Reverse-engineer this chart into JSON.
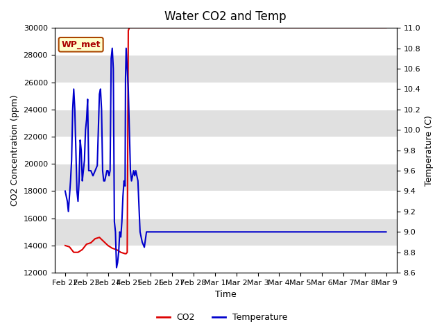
{
  "title": "Water CO2 and Temp",
  "xlabel": "Time",
  "ylabel_left": "CO2 Concentration (ppm)",
  "ylabel_right": "Temperature (C)",
  "ylim_left": [
    12000,
    30000
  ],
  "ylim_right": [
    8.6,
    11.0
  ],
  "co2_color": "#dd0000",
  "temp_color": "#0000cc",
  "annotation_text": "WP_met",
  "annotation_box_color": "#ffffcc",
  "annotation_box_edge": "#aa4400",
  "legend_labels": [
    "CO2",
    "Temperature"
  ],
  "bg_color": "#ffffff",
  "plot_bg_color": "#ffffff",
  "band_color": "#e0e0e0",
  "title_fontsize": 12,
  "axis_fontsize": 9,
  "tick_fontsize": 8,
  "x_tick_labels": [
    "Feb 22",
    "Feb 23",
    "Feb 24",
    "Feb 25",
    "Feb 26",
    "Feb 27",
    "Feb 28",
    "Mar 1",
    "Mar 2",
    "Mar 3",
    "Mar 4",
    "Mar 5",
    "Mar 6",
    "Mar 7",
    "Mar 8",
    "Mar 9"
  ],
  "left_yticks": [
    12000,
    14000,
    16000,
    18000,
    20000,
    22000,
    24000,
    26000,
    28000,
    30000
  ],
  "right_yticks": [
    8.6,
    8.8,
    9.0,
    9.2,
    9.4,
    9.6,
    9.8,
    10.0,
    10.2,
    10.4,
    10.6,
    10.8,
    11.0
  ],
  "co2_x": [
    0.0,
    0.2,
    0.4,
    0.6,
    0.8,
    1.0,
    1.2,
    1.4,
    1.6,
    1.8,
    2.0,
    2.2,
    2.4,
    2.6,
    2.8,
    2.85,
    2.9,
    2.95,
    3.0,
    3.1,
    4.0,
    5.0,
    6.0,
    7.0,
    8.0,
    9.0,
    10.0,
    11.0,
    12.0,
    13.0,
    14.0,
    15.0
  ],
  "co2_y": [
    14000,
    13900,
    13500,
    13500,
    13700,
    14100,
    14200,
    14500,
    14600,
    14300,
    14000,
    13800,
    13700,
    13500,
    13400,
    13400,
    13500,
    29800,
    30000,
    30000,
    30000,
    30000,
    30000,
    30000,
    30000,
    30000,
    30000,
    30000,
    30000,
    30000,
    30000,
    30000
  ],
  "temp_x": [
    0.0,
    0.05,
    0.1,
    0.15,
    0.2,
    0.25,
    0.3,
    0.35,
    0.4,
    0.45,
    0.5,
    0.55,
    0.6,
    0.65,
    0.7,
    0.75,
    0.8,
    0.85,
    0.9,
    0.95,
    1.0,
    1.05,
    1.1,
    1.15,
    1.2,
    1.3,
    1.4,
    1.5,
    1.6,
    1.65,
    1.7,
    1.75,
    1.8,
    1.85,
    1.9,
    1.95,
    2.0,
    2.05,
    2.1,
    2.15,
    2.2,
    2.25,
    2.3,
    2.35,
    2.4,
    2.45,
    2.5,
    2.55,
    2.6,
    2.65,
    2.7,
    2.75,
    2.8,
    2.82,
    2.85,
    2.9,
    2.95,
    3.0,
    3.05,
    3.1,
    3.15,
    3.2,
    3.25,
    3.3,
    3.4,
    3.5,
    3.6,
    3.7,
    3.8,
    3.9,
    4.0,
    4.2,
    4.5,
    5.0,
    6.0,
    7.0,
    8.0,
    9.0,
    10.0,
    11.0,
    12.0,
    13.0,
    14.0,
    15.0
  ],
  "temp_y": [
    9.4,
    9.35,
    9.3,
    9.2,
    9.35,
    9.5,
    9.7,
    10.2,
    10.4,
    10.2,
    9.8,
    9.4,
    9.3,
    9.5,
    9.9,
    9.8,
    9.5,
    9.6,
    9.7,
    10.0,
    10.1,
    10.3,
    9.6,
    9.6,
    9.6,
    9.55,
    9.6,
    9.65,
    10.35,
    10.4,
    10.2,
    9.6,
    9.5,
    9.5,
    9.55,
    9.6,
    9.6,
    9.55,
    9.6,
    10.7,
    10.8,
    10.6,
    9.1,
    9.0,
    8.65,
    8.7,
    8.8,
    9.0,
    8.95,
    9.1,
    9.35,
    9.5,
    9.45,
    10.5,
    10.8,
    10.6,
    10.4,
    10.0,
    9.6,
    9.5,
    9.55,
    9.6,
    9.55,
    9.6,
    9.5,
    9.0,
    8.9,
    8.85,
    9.0,
    9.0,
    9.0,
    9.0,
    9.0,
    9.0,
    9.0,
    9.0,
    9.0,
    9.0,
    9.0,
    9.0,
    9.0,
    9.0,
    9.0,
    9.0
  ]
}
